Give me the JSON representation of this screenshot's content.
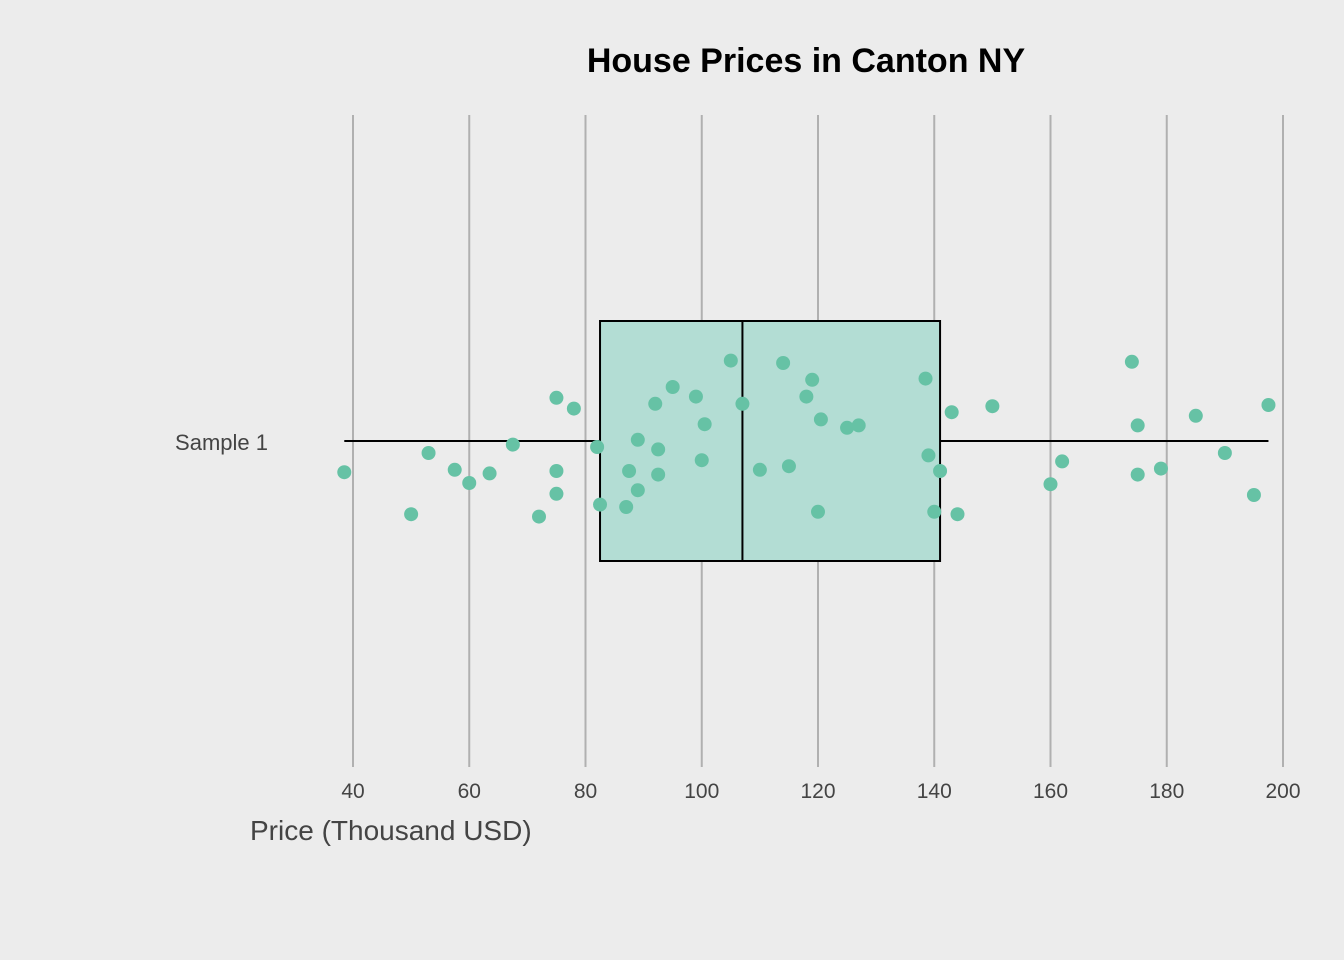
{
  "chart_data": {
    "type": "box",
    "title": "House Prices in Canton NY",
    "xlabel": "Price (Thousand USD)",
    "ylabel": "",
    "xlim": [
      38,
      200
    ],
    "xticks": [
      40,
      60,
      80,
      100,
      120,
      140,
      160,
      180,
      200
    ],
    "tick_labels": [
      "40",
      "60",
      "80",
      "100",
      "120",
      "140",
      "160",
      "180",
      "200"
    ],
    "grid": true,
    "categories": [
      "Sample 1"
    ],
    "box": {
      "min": 38.5,
      "q1": 82.5,
      "median": 107,
      "q3": 141,
      "max": 197.5
    },
    "colors": {
      "background": "#ececec",
      "box_fill": "#b3ddd4",
      "points": "#66c2a5",
      "grid": "#b0b0b0",
      "outline": "#000000"
    },
    "points": [
      {
        "x": 38.5,
        "y": -0.26
      },
      {
        "x": 50,
        "y": -0.61
      },
      {
        "x": 53,
        "y": -0.1
      },
      {
        "x": 57.5,
        "y": -0.24
      },
      {
        "x": 60,
        "y": -0.35
      },
      {
        "x": 63.5,
        "y": -0.27
      },
      {
        "x": 67.5,
        "y": -0.03
      },
      {
        "x": 72,
        "y": -0.63
      },
      {
        "x": 75,
        "y": 0.36
      },
      {
        "x": 78,
        "y": 0.27
      },
      {
        "x": 75,
        "y": -0.25
      },
      {
        "x": 75,
        "y": -0.44
      },
      {
        "x": 82,
        "y": -0.05
      },
      {
        "x": 82.5,
        "y": -0.53
      },
      {
        "x": 87,
        "y": -0.55
      },
      {
        "x": 87.5,
        "y": -0.25
      },
      {
        "x": 89,
        "y": 0.01
      },
      {
        "x": 89,
        "y": -0.41
      },
      {
        "x": 92,
        "y": 0.31
      },
      {
        "x": 92.5,
        "y": -0.07
      },
      {
        "x": 92.5,
        "y": -0.28
      },
      {
        "x": 95,
        "y": 0.45
      },
      {
        "x": 99,
        "y": 0.37
      },
      {
        "x": 100,
        "y": -0.16
      },
      {
        "x": 100.5,
        "y": 0.14
      },
      {
        "x": 105,
        "y": 0.67
      },
      {
        "x": 107,
        "y": 0.31
      },
      {
        "x": 110,
        "y": -0.24
      },
      {
        "x": 114,
        "y": 0.65
      },
      {
        "x": 115,
        "y": -0.21
      },
      {
        "x": 118,
        "y": 0.37
      },
      {
        "x": 119,
        "y": 0.51
      },
      {
        "x": 120,
        "y": -0.59
      },
      {
        "x": 120.5,
        "y": 0.18
      },
      {
        "x": 125,
        "y": 0.11
      },
      {
        "x": 127,
        "y": 0.13
      },
      {
        "x": 138.5,
        "y": 0.52
      },
      {
        "x": 139,
        "y": -0.12
      },
      {
        "x": 140,
        "y": -0.59
      },
      {
        "x": 141,
        "y": -0.25
      },
      {
        "x": 143,
        "y": 0.24
      },
      {
        "x": 144,
        "y": -0.61
      },
      {
        "x": 150,
        "y": 0.29
      },
      {
        "x": 160,
        "y": -0.36
      },
      {
        "x": 162,
        "y": -0.17
      },
      {
        "x": 174,
        "y": 0.66
      },
      {
        "x": 175,
        "y": 0.13
      },
      {
        "x": 175,
        "y": -0.28
      },
      {
        "x": 179,
        "y": -0.23
      },
      {
        "x": 185,
        "y": 0.21
      },
      {
        "x": 190,
        "y": -0.1
      },
      {
        "x": 195,
        "y": -0.45
      },
      {
        "x": 197.5,
        "y": 0.3
      }
    ]
  }
}
